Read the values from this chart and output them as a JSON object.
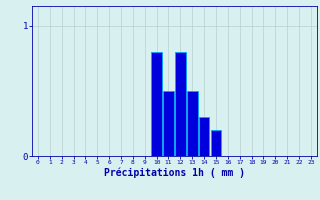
{
  "categories": [
    0,
    1,
    2,
    3,
    4,
    5,
    6,
    7,
    8,
    9,
    10,
    11,
    12,
    13,
    14,
    15,
    16,
    17,
    18,
    19,
    20,
    21,
    22,
    23
  ],
  "values": [
    0,
    0,
    0,
    0,
    0,
    0,
    0,
    0,
    0,
    0,
    0.8,
    0.5,
    0.8,
    0.5,
    0.3,
    0.2,
    0,
    0,
    0,
    0,
    0,
    0,
    0,
    0
  ],
  "bar_color": "#0000dd",
  "bar_edge_color": "#00aaff",
  "background_color": "#d8f0f0",
  "grid_color": "#b8d0d0",
  "axis_color": "#0000aa",
  "tick_color": "#0000aa",
  "xlabel": "Précipitations 1h ( mm )",
  "xlabel_fontsize": 7,
  "ylabel_ticks": [
    0,
    1
  ],
  "ylim": [
    0,
    1.15
  ],
  "xlim": [
    -0.5,
    23.5
  ]
}
